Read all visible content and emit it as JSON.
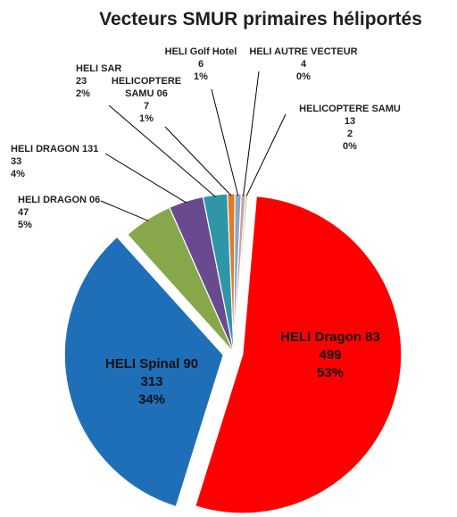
{
  "chart_data": {
    "type": "pie",
    "title": "Vecteurs SMUR primaires héliportés",
    "slices": [
      {
        "name": "HELI Dragon 83",
        "value": 499,
        "percent": "53%",
        "color": "#ff0000"
      },
      {
        "name": "HELI Spinal 90",
        "value": 313,
        "percent": "34%",
        "color": "#1f6fb8"
      },
      {
        "name": "HELI DRAGON 06",
        "value": 47,
        "percent": "5%",
        "color": "#86a74a"
      },
      {
        "name": "HELI DRAGON 131",
        "value": 33,
        "percent": "4%",
        "color": "#6a4a8e"
      },
      {
        "name": "HELI SAR",
        "value": 23,
        "percent": "2%",
        "color": "#2f96a8"
      },
      {
        "name": "HELICOPTERE SAMU 06",
        "value": 7,
        "percent": "1%",
        "color": "#e07b26"
      },
      {
        "name": "HELI Golf Hotel",
        "value": 6,
        "percent": "1%",
        "color": "#8ea4c8"
      },
      {
        "name": "HELI AUTRE VECTEUR",
        "value": 4,
        "percent": "0%",
        "color": "#c8a0a0"
      },
      {
        "name": "HELICOPTERE SAMU 13",
        "value": 2,
        "percent": "0%",
        "color": "#b0c890"
      }
    ],
    "legend": "none"
  }
}
